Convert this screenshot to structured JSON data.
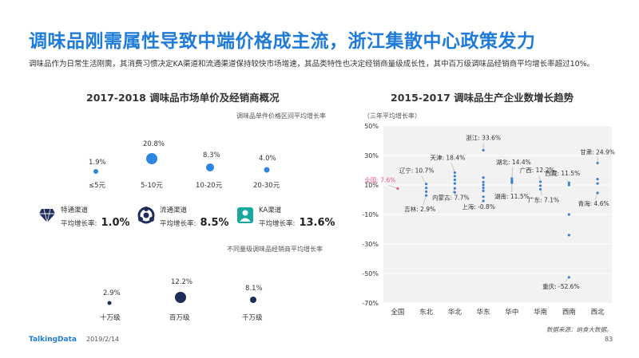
{
  "title": "调味品刚需属性导致中端价格成主流，浙江集散中心政策发力",
  "subtitle": "调味品作为日常生活刚需，其消费习惯决定KA渠道和流通渠道保持较快市场增速，其品类特性也决定经销商量级成长性，其中百万级调味品经销商平均增长率超过10%。",
  "left": {
    "section_title": "2017-2018  调味品市场单价及经销商概况",
    "price_caption": "调味品单件价格区间平均增长率",
    "price_items": [
      {
        "category": "≤5元",
        "value": "1.9%"
      },
      {
        "category": "5-10元",
        "value": "20.8%"
      },
      {
        "category": "10-20元",
        "value": "8.3%"
      },
      {
        "category": "20-30元",
        "value": "4.0%"
      }
    ],
    "channels": [
      {
        "name": "特通渠道",
        "label": "平均增长率:",
        "value": "1.0%",
        "icon": "diamond-icon"
      },
      {
        "name": "流通渠道",
        "label": "平均增长率:",
        "value": "8.5%",
        "icon": "network-icon"
      },
      {
        "name": "KA渠道",
        "label": "平均增长率:",
        "value": "13.6%",
        "icon": "person-icon"
      }
    ],
    "dealer_caption": "不同量级调味品经销商平均增长率",
    "dealer_items": [
      {
        "category": "十万级",
        "value": "2.9%"
      },
      {
        "category": "百万级",
        "value": "12.2%"
      },
      {
        "category": "千万级",
        "value": "8.1%"
      }
    ]
  },
  "right": {
    "section_title": "2015-2017  调味品生产企业数增长趋势",
    "unit_note": "（三年平均增长率）"
  },
  "chart_data": {
    "type": "scatter",
    "title": "2015-2017  调味品生产企业数增长趋势",
    "ylabel": "（三年平均增长率）",
    "categories": [
      "全国",
      "东北",
      "华北",
      "华东",
      "华中",
      "华南",
      "西南",
      "西北"
    ],
    "y_ticks": [
      "50%",
      "30%",
      "10%",
      "-10%",
      "-30%",
      "-50%",
      "-70%"
    ],
    "ylim": [
      -70,
      50
    ],
    "annotations": [
      {
        "label": "全国: 7.6%",
        "category": "全国",
        "value": 7.6,
        "highlight": true
      },
      {
        "label": "辽宁: 10.7%",
        "category": "东北",
        "value": 10.7
      },
      {
        "label": "吉林: 2.9%",
        "category": "东北",
        "value": 2.9
      },
      {
        "label": "天津: 18.4%",
        "category": "华北",
        "value": 18.4
      },
      {
        "label": "内蒙古: 7.7%",
        "category": "华北",
        "value": 7.7
      },
      {
        "label": "浙江: 33.6%",
        "category": "华东",
        "value": 33.6
      },
      {
        "label": "上海: -0.8%",
        "category": "华东",
        "value": -0.8
      },
      {
        "label": "湖北: 14.4%",
        "category": "华中",
        "value": 14.4
      },
      {
        "label": "湖南: 11.5%",
        "category": "华中",
        "value": 11.5
      },
      {
        "label": "广西: 12.2%",
        "category": "华南",
        "value": 12.2
      },
      {
        "label": "广东: 7.1%",
        "category": "华南",
        "value": 7.1
      },
      {
        "label": "西藏: 11.5%",
        "category": "西南",
        "value": 11.5
      },
      {
        "label": "重庆: -52.6%",
        "category": "西南",
        "value": -52.6
      },
      {
        "label": "甘肃: 24.9%",
        "category": "西北",
        "value": 24.9
      },
      {
        "label": "青海: 4.6%",
        "category": "西北",
        "value": 4.6
      }
    ],
    "points": [
      {
        "category": "全国",
        "values": [
          7.6
        ]
      },
      {
        "category": "东北",
        "values": [
          10.7,
          8.0,
          5.5,
          2.9
        ]
      },
      {
        "category": "华北",
        "values": [
          18.4,
          16.0,
          13.5,
          11.0,
          7.7,
          5.0
        ]
      },
      {
        "category": "华东",
        "values": [
          33.6,
          15.0,
          12.0,
          10.0,
          8.0,
          6.0,
          2.0,
          -0.8
        ]
      },
      {
        "category": "华中",
        "values": [
          14.4,
          13.0,
          12.0,
          11.5
        ]
      },
      {
        "category": "华南",
        "values": [
          12.2,
          9.5,
          7.1
        ]
      },
      {
        "category": "西南",
        "values": [
          11.5,
          10.0,
          -10.0,
          -24.0,
          -52.6
        ]
      },
      {
        "category": "西北",
        "values": [
          24.9,
          14.0,
          11.0,
          4.6
        ]
      }
    ],
    "colors": {
      "point": "#3a7fd0",
      "highlight": "#e05a7a"
    }
  },
  "footer": {
    "source": "数据来源：纳食大数据。",
    "brand": "TalkingData",
    "date": "2019/2/14",
    "page": "83"
  },
  "colors": {
    "title": "#1f7bd9",
    "navy": "#1e2d5a",
    "blue": "#2f86e0",
    "teal": "#1aa79c"
  }
}
